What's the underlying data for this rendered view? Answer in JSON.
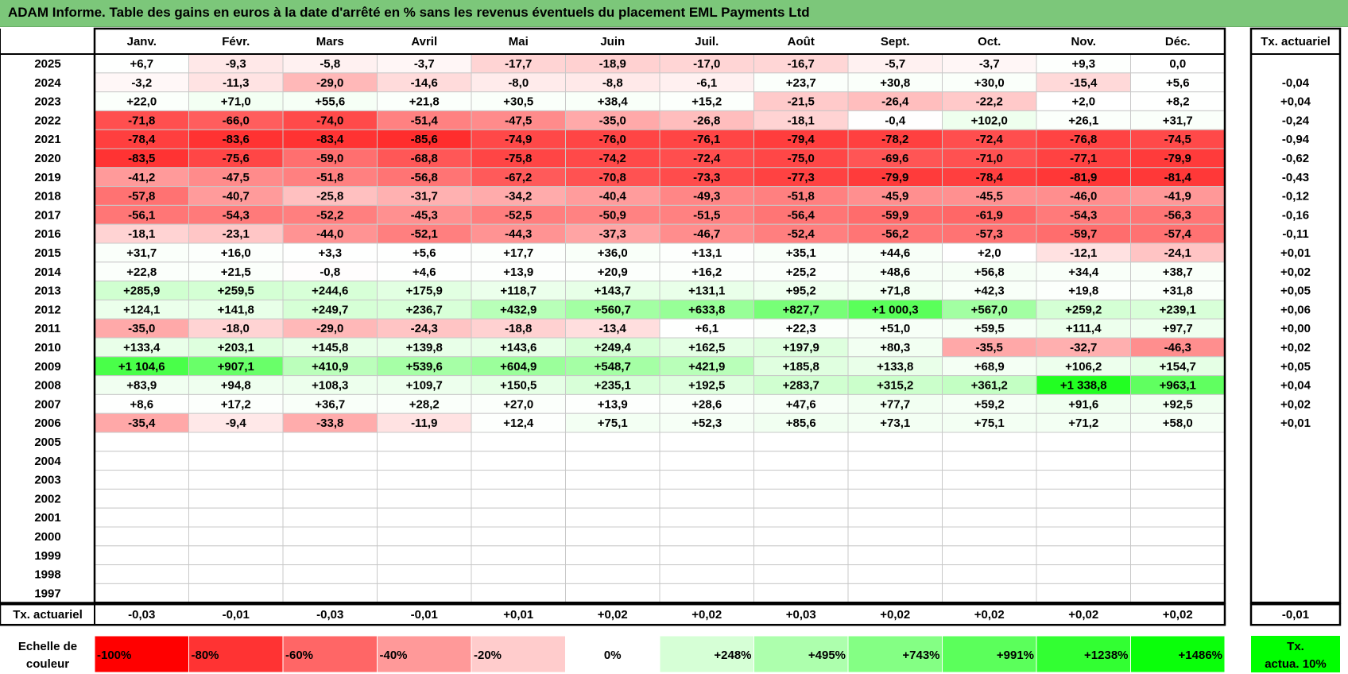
{
  "title": "ADAM Informe. Table des gains en euros à la date d'arrêté en % sans les revenus éventuels du placement EML Payments Ltd",
  "chart_data": {
    "type": "heatmap",
    "months": [
      "Janv.",
      "Févr.",
      "Mars",
      "Avril",
      "Mai",
      "Juin",
      "Juil.",
      "Août",
      "Sept.",
      "Oct.",
      "Nov.",
      "Déc."
    ],
    "rate_header": "Tx. actuariel",
    "rows": [
      {
        "year": "2025",
        "values": [
          "+6,7",
          "-9,3",
          "-5,8",
          "-3,7",
          "-17,7",
          "-18,9",
          "-17,0",
          "-16,7",
          "-5,7",
          "-3,7",
          "+9,3",
          "0,0"
        ],
        "rate": ""
      },
      {
        "year": "2024",
        "values": [
          "-3,2",
          "-11,3",
          "-29,0",
          "-14,6",
          "-8,0",
          "-8,8",
          "-6,1",
          "+23,7",
          "+30,8",
          "+30,0",
          "-15,4",
          "+5,6"
        ],
        "rate": "-0,04"
      },
      {
        "year": "2023",
        "values": [
          "+22,0",
          "+71,0",
          "+55,6",
          "+21,8",
          "+30,5",
          "+38,4",
          "+15,2",
          "-21,5",
          "-26,4",
          "-22,2",
          "+2,0",
          "+8,2"
        ],
        "rate": "+0,04"
      },
      {
        "year": "2022",
        "values": [
          "-71,8",
          "-66,0",
          "-74,0",
          "-51,4",
          "-47,5",
          "-35,0",
          "-26,8",
          "-18,1",
          "-0,4",
          "+102,0",
          "+26,1",
          "+31,7"
        ],
        "rate": "-0,24"
      },
      {
        "year": "2021",
        "values": [
          "-78,4",
          "-83,6",
          "-83,4",
          "-85,6",
          "-74,9",
          "-76,0",
          "-76,1",
          "-79,4",
          "-78,2",
          "-72,4",
          "-76,8",
          "-74,5"
        ],
        "rate": "-0,94"
      },
      {
        "year": "2020",
        "values": [
          "-83,5",
          "-75,6",
          "-59,0",
          "-68,8",
          "-75,8",
          "-74,2",
          "-72,4",
          "-75,0",
          "-69,6",
          "-71,0",
          "-77,1",
          "-79,9"
        ],
        "rate": "-0,62"
      },
      {
        "year": "2019",
        "values": [
          "-41,2",
          "-47,5",
          "-51,8",
          "-56,8",
          "-67,2",
          "-70,8",
          "-73,3",
          "-77,3",
          "-79,9",
          "-78,4",
          "-81,9",
          "-81,4"
        ],
        "rate": "-0,43"
      },
      {
        "year": "2018",
        "values": [
          "-57,8",
          "-40,7",
          "-25,8",
          "-31,7",
          "-34,2",
          "-40,4",
          "-49,3",
          "-51,8",
          "-45,9",
          "-45,5",
          "-46,0",
          "-41,9"
        ],
        "rate": "-0,12"
      },
      {
        "year": "2017",
        "values": [
          "-56,1",
          "-54,3",
          "-52,2",
          "-45,3",
          "-52,5",
          "-50,9",
          "-51,5",
          "-56,4",
          "-59,9",
          "-61,9",
          "-54,3",
          "-56,3"
        ],
        "rate": "-0,16"
      },
      {
        "year": "2016",
        "values": [
          "-18,1",
          "-23,1",
          "-44,0",
          "-52,1",
          "-44,3",
          "-37,3",
          "-46,7",
          "-52,4",
          "-56,2",
          "-57,3",
          "-59,7",
          "-57,4"
        ],
        "rate": "-0,11"
      },
      {
        "year": "2015",
        "values": [
          "+31,7",
          "+16,0",
          "+3,3",
          "+5,6",
          "+17,7",
          "+36,0",
          "+13,1",
          "+35,1",
          "+44,6",
          "+2,0",
          "-12,1",
          "-24,1"
        ],
        "rate": "+0,01"
      },
      {
        "year": "2014",
        "values": [
          "+22,8",
          "+21,5",
          "-0,8",
          "+4,6",
          "+13,9",
          "+20,9",
          "+16,2",
          "+25,2",
          "+48,6",
          "+56,8",
          "+34,4",
          "+38,7"
        ],
        "rate": "+0,02"
      },
      {
        "year": "2013",
        "values": [
          "+285,9",
          "+259,5",
          "+244,6",
          "+175,9",
          "+118,7",
          "+143,7",
          "+131,1",
          "+95,2",
          "+71,8",
          "+42,3",
          "+19,8",
          "+31,8"
        ],
        "rate": "+0,05"
      },
      {
        "year": "2012",
        "values": [
          "+124,1",
          "+141,8",
          "+249,7",
          "+236,7",
          "+432,9",
          "+560,7",
          "+633,8",
          "+827,7",
          "+1 000,3",
          "+567,0",
          "+259,2",
          "+239,1"
        ],
        "rate": "+0,06"
      },
      {
        "year": "2011",
        "values": [
          "-35,0",
          "-18,0",
          "-29,0",
          "-24,3",
          "-18,8",
          "-13,4",
          "+6,1",
          "+22,3",
          "+51,0",
          "+59,5",
          "+111,4",
          "+97,7"
        ],
        "rate": "+0,00"
      },
      {
        "year": "2010",
        "values": [
          "+133,4",
          "+203,1",
          "+145,8",
          "+139,8",
          "+143,6",
          "+249,4",
          "+162,5",
          "+197,9",
          "+80,3",
          "-35,5",
          "-32,7",
          "-46,3"
        ],
        "rate": "+0,02"
      },
      {
        "year": "2009",
        "values": [
          "+1 104,6",
          "+907,1",
          "+410,9",
          "+539,6",
          "+604,9",
          "+548,7",
          "+421,9",
          "+185,8",
          "+133,8",
          "+68,9",
          "+106,2",
          "+154,7"
        ],
        "rate": "+0,05"
      },
      {
        "year": "2008",
        "values": [
          "+83,9",
          "+94,8",
          "+108,3",
          "+109,7",
          "+150,5",
          "+235,1",
          "+192,5",
          "+283,7",
          "+315,2",
          "+361,2",
          "+1 338,8",
          "+963,1"
        ],
        "rate": "+0,04"
      },
      {
        "year": "2007",
        "values": [
          "+8,6",
          "+17,2",
          "+36,7",
          "+28,2",
          "+27,0",
          "+13,9",
          "+28,6",
          "+47,6",
          "+77,7",
          "+59,2",
          "+91,6",
          "+92,5"
        ],
        "rate": "+0,02"
      },
      {
        "year": "2006",
        "values": [
          "-35,4",
          "-9,4",
          "-33,8",
          "-11,9",
          "+12,4",
          "+75,1",
          "+52,3",
          "+85,6",
          "+73,1",
          "+75,1",
          "+71,2",
          "+58,0"
        ],
        "rate": "+0,01"
      },
      {
        "year": "2005",
        "values": [
          "",
          "",
          "",
          "",
          "",
          "",
          "",
          "",
          "",
          "",
          "",
          ""
        ],
        "rate": ""
      },
      {
        "year": "2004",
        "values": [
          "",
          "",
          "",
          "",
          "",
          "",
          "",
          "",
          "",
          "",
          "",
          ""
        ],
        "rate": ""
      },
      {
        "year": "2003",
        "values": [
          "",
          "",
          "",
          "",
          "",
          "",
          "",
          "",
          "",
          "",
          "",
          ""
        ],
        "rate": ""
      },
      {
        "year": "2002",
        "values": [
          "",
          "",
          "",
          "",
          "",
          "",
          "",
          "",
          "",
          "",
          "",
          ""
        ],
        "rate": ""
      },
      {
        "year": "2001",
        "values": [
          "",
          "",
          "",
          "",
          "",
          "",
          "",
          "",
          "",
          "",
          "",
          ""
        ],
        "rate": ""
      },
      {
        "year": "2000",
        "values": [
          "",
          "",
          "",
          "",
          "",
          "",
          "",
          "",
          "",
          "",
          "",
          ""
        ],
        "rate": ""
      },
      {
        "year": "1999",
        "values": [
          "",
          "",
          "",
          "",
          "",
          "",
          "",
          "",
          "",
          "",
          "",
          ""
        ],
        "rate": ""
      },
      {
        "year": "1998",
        "values": [
          "",
          "",
          "",
          "",
          "",
          "",
          "",
          "",
          "",
          "",
          "",
          ""
        ],
        "rate": ""
      },
      {
        "year": "1997",
        "values": [
          "",
          "",
          "",
          "",
          "",
          "",
          "",
          "",
          "",
          "",
          "",
          ""
        ],
        "rate": ""
      }
    ],
    "footer": {
      "label": "Tx. actuariel",
      "values": [
        "-0,03",
        "-0,01",
        "-0,03",
        "-0,01",
        "+0,01",
        "+0,02",
        "+0,02",
        "+0,03",
        "+0,02",
        "+0,02",
        "+0,02",
        "+0,02"
      ],
      "rate": "-0,01"
    },
    "scale": {
      "label_line1": "Echelle de",
      "label_line2": "couleur",
      "stops": [
        {
          "text": "-100%",
          "color": "#ff0000"
        },
        {
          "text": "-80%",
          "color": "#ff3333"
        },
        {
          "text": "-60%",
          "color": "#ff6666"
        },
        {
          "text": "-40%",
          "color": "#ff9999"
        },
        {
          "text": "-20%",
          "color": "#ffcccc"
        },
        {
          "text": "0%",
          "color": "#ffffff"
        },
        {
          "text": "+248%",
          "color": "#d6ffd6"
        },
        {
          "text": "+495%",
          "color": "#adffad"
        },
        {
          "text": "+743%",
          "color": "#84ff84"
        },
        {
          "text": "+991%",
          "color": "#5bff5b"
        },
        {
          "text": "+1238%",
          "color": "#32ff32"
        },
        {
          "text": "+1486%",
          "color": "#0aff0a"
        }
      ],
      "rate_line1": "Tx.",
      "rate_line2": "actua. 10%",
      "rate_color": "#00ff00"
    },
    "max_positive": 1486
  }
}
